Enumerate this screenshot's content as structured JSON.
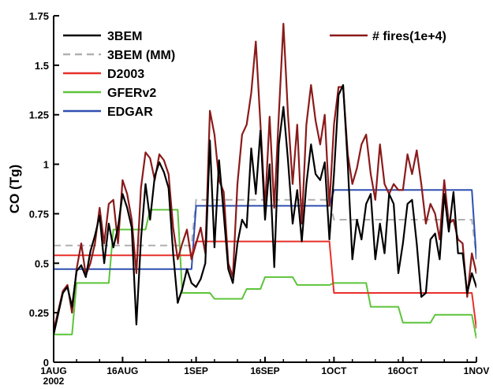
{
  "chart_data": {
    "type": "line",
    "title": "",
    "xlabel": "",
    "ylabel": "CO (Tg)",
    "ylim": [
      0,
      1.75
    ],
    "xlim": [
      "2002-08-01",
      "2002-11-01"
    ],
    "grid": false,
    "legend": "top-left and top-right",
    "x_ticks": [
      {
        "date": "2002-08-01",
        "label": "1AUG"
      },
      {
        "date": "2002-08-16",
        "label": "16AUG"
      },
      {
        "date": "2002-09-01",
        "label": "1SEP"
      },
      {
        "date": "2002-09-16",
        "label": "16SEP"
      },
      {
        "date": "2002-10-01",
        "label": "1OCT"
      },
      {
        "date": "2002-10-16",
        "label": "16OCT"
      },
      {
        "date": "2002-11-01",
        "label": "1NOV"
      }
    ],
    "x_year_label": "2002",
    "y_ticks": [
      "0",
      "0.25",
      "0.5",
      "0.75",
      "1",
      "1.25",
      "1.5",
      "1.75"
    ],
    "series": [
      {
        "name": "3BEM",
        "color": "#000000",
        "style": "solid",
        "points": [
          [
            "2002-08-01",
            0.14
          ],
          [
            "2002-08-03",
            0.35
          ],
          [
            "2002-08-04",
            0.38
          ],
          [
            "2002-08-05",
            0.28
          ],
          [
            "2002-08-06",
            0.46
          ],
          [
            "2002-08-07",
            0.49
          ],
          [
            "2002-08-08",
            0.43
          ],
          [
            "2002-08-09",
            0.56
          ],
          [
            "2002-08-10",
            0.64
          ],
          [
            "2002-08-11",
            0.74
          ],
          [
            "2002-08-12",
            0.5
          ],
          [
            "2002-08-13",
            0.7
          ],
          [
            "2002-08-14",
            0.58
          ],
          [
            "2002-08-15",
            0.68
          ],
          [
            "2002-08-16",
            0.85
          ],
          [
            "2002-08-17",
            0.78
          ],
          [
            "2002-08-18",
            0.68
          ],
          [
            "2002-08-19",
            0.19
          ],
          [
            "2002-08-20",
            0.62
          ],
          [
            "2002-08-21",
            0.9
          ],
          [
            "2002-08-22",
            0.72
          ],
          [
            "2002-08-23",
            0.94
          ],
          [
            "2002-08-24",
            1.01
          ],
          [
            "2002-08-25",
            0.96
          ],
          [
            "2002-08-26",
            0.88
          ],
          [
            "2002-08-27",
            0.55
          ],
          [
            "2002-08-28",
            0.3
          ],
          [
            "2002-08-29",
            0.37
          ],
          [
            "2002-08-30",
            0.47
          ],
          [
            "2002-08-31",
            0.4
          ],
          [
            "2002-09-01",
            0.38
          ],
          [
            "2002-09-02",
            0.42
          ],
          [
            "2002-09-03",
            0.5
          ],
          [
            "2002-09-04",
            1.12
          ],
          [
            "2002-09-05",
            0.58
          ],
          [
            "2002-09-06",
            1.02
          ],
          [
            "2002-09-07",
            0.75
          ],
          [
            "2002-09-08",
            0.47
          ],
          [
            "2002-09-09",
            0.4
          ],
          [
            "2002-09-10",
            0.6
          ],
          [
            "2002-09-11",
            0.72
          ],
          [
            "2002-09-12",
            0.68
          ],
          [
            "2002-09-13",
            1.08
          ],
          [
            "2002-09-14",
            0.85
          ],
          [
            "2002-09-15",
            1.17
          ],
          [
            "2002-09-16",
            0.72
          ],
          [
            "2002-09-17",
            1.0
          ],
          [
            "2002-09-18",
            0.48
          ],
          [
            "2002-09-19",
            1.1
          ],
          [
            "2002-09-20",
            1.29
          ],
          [
            "2002-09-21",
            1.02
          ],
          [
            "2002-09-22",
            0.7
          ],
          [
            "2002-09-23",
            0.87
          ],
          [
            "2002-09-24",
            0.61
          ],
          [
            "2002-09-25",
            0.9
          ],
          [
            "2002-09-26",
            1.1
          ],
          [
            "2002-09-27",
            0.95
          ],
          [
            "2002-09-28",
            0.92
          ],
          [
            "2002-09-29",
            1.01
          ],
          [
            "2002-09-30",
            0.62
          ],
          [
            "2002-10-01",
            0.95
          ],
          [
            "2002-10-02",
            1.35
          ],
          [
            "2002-10-03",
            1.4
          ],
          [
            "2002-10-04",
            1.0
          ],
          [
            "2002-10-05",
            0.52
          ],
          [
            "2002-10-06",
            0.72
          ],
          [
            "2002-10-07",
            0.62
          ],
          [
            "2002-10-08",
            0.8
          ],
          [
            "2002-10-09",
            0.85
          ],
          [
            "2002-10-10",
            0.52
          ],
          [
            "2002-10-11",
            0.7
          ],
          [
            "2002-10-12",
            0.55
          ],
          [
            "2002-10-13",
            0.85
          ],
          [
            "2002-10-14",
            0.8
          ],
          [
            "2002-10-15",
            0.45
          ],
          [
            "2002-10-16",
            0.6
          ],
          [
            "2002-10-17",
            0.8
          ],
          [
            "2002-10-18",
            0.82
          ],
          [
            "2002-10-19",
            0.6
          ],
          [
            "2002-10-20",
            0.33
          ],
          [
            "2002-10-21",
            0.35
          ],
          [
            "2002-10-22",
            0.62
          ],
          [
            "2002-10-23",
            0.65
          ],
          [
            "2002-10-24",
            0.52
          ],
          [
            "2002-10-25",
            0.85
          ],
          [
            "2002-10-26",
            0.66
          ],
          [
            "2002-10-27",
            0.86
          ],
          [
            "2002-10-28",
            0.55
          ],
          [
            "2002-10-29",
            0.55
          ],
          [
            "2002-10-30",
            0.35
          ],
          [
            "2002-10-31",
            0.45
          ],
          [
            "2002-11-01",
            0.38
          ],
          [
            "2002-11-02",
            0.42
          ]
        ]
      },
      {
        "name": "3BEM (MM)",
        "color": "#b0b0b0",
        "style": "dashed",
        "points": [
          [
            "2002-08-01",
            0.59
          ],
          [
            "2002-08-31",
            0.59
          ],
          [
            "2002-09-01",
            0.82
          ],
          [
            "2002-09-30",
            0.82
          ],
          [
            "2002-10-01",
            0.72
          ],
          [
            "2002-10-31",
            0.72
          ],
          [
            "2002-11-01",
            0.53
          ]
        ]
      },
      {
        "name": "D2003",
        "color": "#e8302a",
        "style": "solid",
        "points": [
          [
            "2002-08-01",
            0.54
          ],
          [
            "2002-08-31",
            0.54
          ],
          [
            "2002-09-01",
            0.61
          ],
          [
            "2002-09-30",
            0.61
          ],
          [
            "2002-10-01",
            0.35
          ],
          [
            "2002-10-31",
            0.35
          ],
          [
            "2002-11-01",
            0.17
          ]
        ]
      },
      {
        "name": "GFERv2",
        "color": "#5cc43a",
        "style": "solid",
        "points": [
          [
            "2002-08-01",
            0.14
          ],
          [
            "2002-08-05",
            0.14
          ],
          [
            "2002-08-06",
            0.4
          ],
          [
            "2002-08-13",
            0.4
          ],
          [
            "2002-08-14",
            0.67
          ],
          [
            "2002-08-21",
            0.67
          ],
          [
            "2002-08-22",
            0.77
          ],
          [
            "2002-08-28",
            0.77
          ],
          [
            "2002-08-29",
            0.35
          ],
          [
            "2002-09-04",
            0.35
          ],
          [
            "2002-09-05",
            0.32
          ],
          [
            "2002-09-11",
            0.32
          ],
          [
            "2002-09-12",
            0.37
          ],
          [
            "2002-09-15",
            0.37
          ],
          [
            "2002-09-16",
            0.43
          ],
          [
            "2002-09-22",
            0.43
          ],
          [
            "2002-09-23",
            0.39
          ],
          [
            "2002-09-30",
            0.39
          ],
          [
            "2002-10-01",
            0.4
          ],
          [
            "2002-10-08",
            0.4
          ],
          [
            "2002-10-09",
            0.28
          ],
          [
            "2002-10-15",
            0.28
          ],
          [
            "2002-10-16",
            0.2
          ],
          [
            "2002-10-22",
            0.2
          ],
          [
            "2002-10-23",
            0.24
          ],
          [
            "2002-10-31",
            0.24
          ],
          [
            "2002-11-01",
            0.12
          ]
        ]
      },
      {
        "name": "EDGAR",
        "color": "#2f4fb0",
        "style": "solid",
        "points": [
          [
            "2002-08-01",
            0.47
          ],
          [
            "2002-08-31",
            0.47
          ],
          [
            "2002-09-01",
            0.79
          ],
          [
            "2002-09-30",
            0.79
          ],
          [
            "2002-10-01",
            0.87
          ],
          [
            "2002-10-31",
            0.87
          ],
          [
            "2002-11-01",
            0.52
          ]
        ]
      },
      {
        "name": "# fires(1e+4)",
        "color": "#8b1a1a",
        "style": "solid",
        "points": [
          [
            "2002-08-01",
            0.16
          ],
          [
            "2002-08-03",
            0.36
          ],
          [
            "2002-08-04",
            0.39
          ],
          [
            "2002-08-05",
            0.25
          ],
          [
            "2002-08-06",
            0.47
          ],
          [
            "2002-08-07",
            0.6
          ],
          [
            "2002-08-08",
            0.44
          ],
          [
            "2002-08-09",
            0.5
          ],
          [
            "2002-08-10",
            0.6
          ],
          [
            "2002-08-11",
            0.78
          ],
          [
            "2002-08-12",
            0.6
          ],
          [
            "2002-08-13",
            0.8
          ],
          [
            "2002-08-14",
            0.82
          ],
          [
            "2002-08-15",
            0.6
          ],
          [
            "2002-08-16",
            0.92
          ],
          [
            "2002-08-17",
            0.85
          ],
          [
            "2002-08-18",
            0.72
          ],
          [
            "2002-08-19",
            0.45
          ],
          [
            "2002-08-20",
            0.88
          ],
          [
            "2002-08-21",
            1.06
          ],
          [
            "2002-08-22",
            1.03
          ],
          [
            "2002-08-23",
            0.92
          ],
          [
            "2002-08-24",
            1.05
          ],
          [
            "2002-08-25",
            1.02
          ],
          [
            "2002-08-26",
            0.95
          ],
          [
            "2002-08-27",
            0.68
          ],
          [
            "2002-08-28",
            0.52
          ],
          [
            "2002-08-29",
            0.6
          ],
          [
            "2002-08-30",
            0.67
          ],
          [
            "2002-08-31",
            0.52
          ],
          [
            "2002-09-01",
            0.6
          ],
          [
            "2002-09-02",
            0.68
          ],
          [
            "2002-09-03",
            0.55
          ],
          [
            "2002-09-04",
            1.27
          ],
          [
            "2002-09-05",
            1.15
          ],
          [
            "2002-09-06",
            0.92
          ],
          [
            "2002-09-07",
            0.86
          ],
          [
            "2002-09-08",
            0.5
          ],
          [
            "2002-09-09",
            0.43
          ],
          [
            "2002-09-10",
            0.9
          ],
          [
            "2002-09-11",
            1.15
          ],
          [
            "2002-09-12",
            1.2
          ],
          [
            "2002-09-13",
            1.36
          ],
          [
            "2002-09-14",
            1.62
          ],
          [
            "2002-09-15",
            1.2
          ],
          [
            "2002-09-16",
            0.78
          ],
          [
            "2002-09-17",
            1.24
          ],
          [
            "2002-09-18",
            0.78
          ],
          [
            "2002-09-19",
            1.25
          ],
          [
            "2002-09-20",
            1.71
          ],
          [
            "2002-09-21",
            1.25
          ],
          [
            "2002-09-22",
            0.9
          ],
          [
            "2002-09-23",
            1.2
          ],
          [
            "2002-09-24",
            0.7
          ],
          [
            "2002-09-25",
            1.2
          ],
          [
            "2002-09-26",
            1.4
          ],
          [
            "2002-09-27",
            1.22
          ],
          [
            "2002-09-28",
            1.1
          ],
          [
            "2002-09-29",
            1.25
          ],
          [
            "2002-09-30",
            0.79
          ],
          [
            "2002-10-01",
            1.2
          ],
          [
            "2002-10-02",
            1.39
          ],
          [
            "2002-10-03",
            1.39
          ],
          [
            "2002-10-04",
            1.05
          ],
          [
            "2002-10-05",
            0.9
          ],
          [
            "2002-10-06",
            0.98
          ],
          [
            "2002-10-07",
            1.1
          ],
          [
            "2002-10-08",
            1.15
          ],
          [
            "2002-10-09",
            0.95
          ],
          [
            "2002-10-10",
            0.82
          ],
          [
            "2002-10-11",
            1.1
          ],
          [
            "2002-10-12",
            0.9
          ],
          [
            "2002-10-13",
            0.85
          ],
          [
            "2002-10-14",
            0.9
          ],
          [
            "2002-10-15",
            0.87
          ],
          [
            "2002-10-16",
            0.87
          ],
          [
            "2002-10-17",
            1.05
          ],
          [
            "2002-10-18",
            0.95
          ],
          [
            "2002-10-19",
            1.07
          ],
          [
            "2002-10-20",
            0.9
          ],
          [
            "2002-10-21",
            0.7
          ],
          [
            "2002-10-22",
            0.8
          ],
          [
            "2002-10-23",
            0.75
          ],
          [
            "2002-10-24",
            0.62
          ],
          [
            "2002-10-25",
            0.92
          ],
          [
            "2002-10-26",
            0.7
          ],
          [
            "2002-10-27",
            0.72
          ],
          [
            "2002-10-28",
            0.62
          ],
          [
            "2002-10-29",
            0.6
          ],
          [
            "2002-10-30",
            0.33
          ],
          [
            "2002-10-31",
            0.55
          ],
          [
            "2002-11-01",
            0.45
          ],
          [
            "2002-11-02",
            0.5
          ]
        ]
      }
    ]
  }
}
